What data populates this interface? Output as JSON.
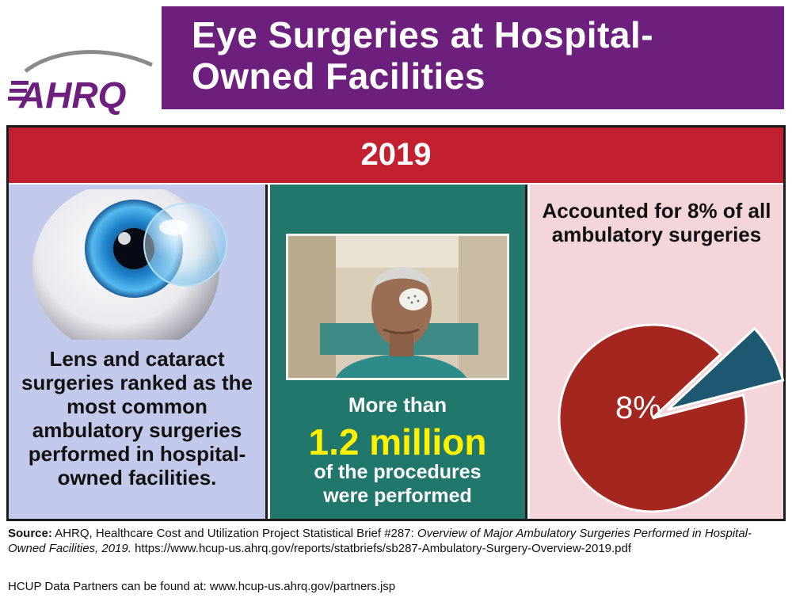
{
  "logo": {
    "text": "AHRQ"
  },
  "header": {
    "title_line1": "Eye Surgeries at Hospital-",
    "title_line2": "Owned Facilities"
  },
  "year": "2019",
  "panel_left": {
    "text": "Lens and cataract surgeries ranked as the most common ambulatory surgeries performed in hospital-owned facilities."
  },
  "panel_middle": {
    "line1": "More than",
    "big_number": "1.2 million",
    "line2": "of the procedures",
    "line3": "were performed"
  },
  "panel_right": {
    "text": "Accounted for 8% of all ambulatory surgeries",
    "pie_label": "8%",
    "pie_value_percent": 8,
    "pie_main_color": "#a3261f",
    "pie_slice_color": "#1d5770"
  },
  "source": {
    "label": "Source:",
    "text_a": " AHRQ, Healthcare Cost and Utilization Project Statistical Brief #287: ",
    "title_italic": "Overview of Major Ambulatory Surgeries Performed in Hospital-Owned Facilities, 2019.",
    "url": " https://www.hcup-us.ahrq.gov/reports/statbriefs/sb287-Ambulatory-Surgery-Overview-2019.pdf"
  },
  "partners": "HCUP Data Partners can be found at: www.hcup-us.ahrq.gov/partners.jsp",
  "colors": {
    "title_bg": "#6d1f7d",
    "year_bar": "#c21f31",
    "panel_left_bg": "#c2c9ea",
    "panel_middle_bg": "#21776c",
    "panel_right_bg": "#f4d5d9",
    "highlight_yellow": "#fff200"
  }
}
